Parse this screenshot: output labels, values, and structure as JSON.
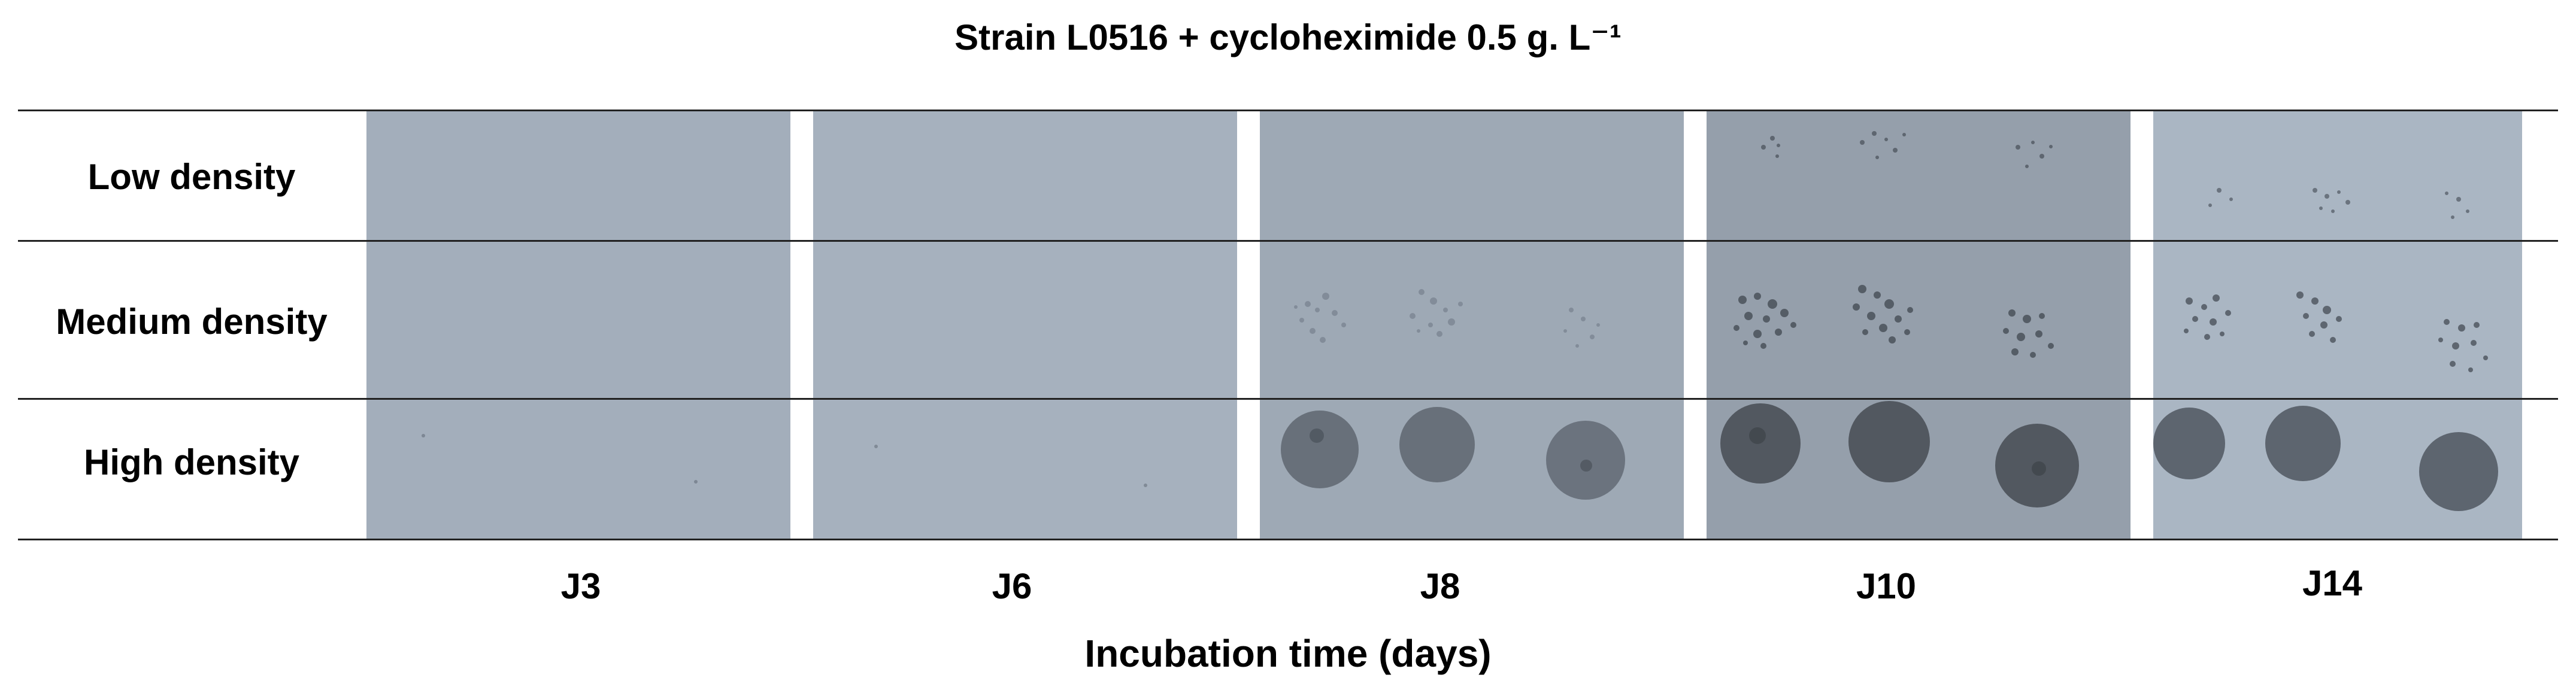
{
  "title": "Strain L0516 + cycloheximide 0.5 g. L⁻¹",
  "rows": [
    {
      "label": "Low density"
    },
    {
      "label": "Medium density"
    },
    {
      "label": "High density"
    }
  ],
  "columns": [
    {
      "label": "J3"
    },
    {
      "label": "J6"
    },
    {
      "label": "J8"
    },
    {
      "label": "J10"
    },
    {
      "label": "J14"
    }
  ],
  "xlabel": "Incubation time (days)",
  "colors": {
    "panel_bg": "#a3aebb",
    "panel_j8": "#9ea9b5",
    "panel_j10": "#959fab",
    "panel_j14": "#aab6c3",
    "colony": "#5e6670",
    "colony_dark": "#4a5058"
  }
}
